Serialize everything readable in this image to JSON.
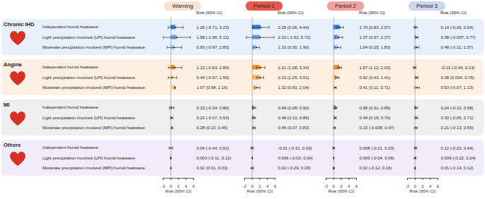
{
  "chart_data": {
    "type": "forest",
    "x_label": "Risk (95% CI)",
    "column_label": "Risk (95% CI)",
    "xlim": [
      -2,
      6
    ],
    "xticks": [
      -2,
      0,
      2,
      4,
      6
    ],
    "data_labels": true,
    "periods": [
      {
        "name": "Warning",
        "color": "#fbe2d2"
      },
      {
        "name": "Period 1",
        "color": "#e8564c"
      },
      {
        "name": "Period 2",
        "color": "#f2a29c"
      },
      {
        "name": "Period 3",
        "color": "#cdd6f0"
      }
    ],
    "row_labels": [
      "Independent humid heatwave",
      "Light precipitation involved (LPI) humid heatwave",
      "Moderate precipitation involved (MPI) humid heatwave"
    ],
    "groups": [
      {
        "name": "Chronic IHD",
        "colors": [
          "#2f80ed",
          "#6fa8f0",
          "#9cc3f4"
        ],
        "panels": [
          {
            "values": [
              1.26,
              1.58,
              0.93
            ],
            "lower": [
              -0.71,
              -1.96,
              -0.97
            ],
            "upper": [
              3.23,
              5.12,
              2.83
            ],
            "value_labels": [
              "1.26 (-0.71, 3.23)",
              "1.58 (-1.96, 5.12)",
              "0.93 (-0.97, 2.83)"
            ]
          },
          {
            "values": [
              2.25,
              2.1,
              1.1
            ],
            "lower": [
              0.06,
              -1.52,
              0.3
            ],
            "upper": [
              4.44,
              5.72,
              1.9
            ],
            "value_labels": [
              "2.25 (0.06, 4.44)",
              "2.10 (-1.52, 5.72)",
              "1.10 (0.30, 1.90)"
            ]
          },
          {
            "values": [
              1.7,
              1.37,
              1.04
            ],
            "lower": [
              0.83,
              0.37,
              0.25
            ],
            "upper": [
              2.57,
              2.37,
              1.83
            ],
            "value_labels": [
              "1.70 (0.83, 2.57)",
              "1.37 (0.37, 2.37)",
              "1.04 (0.25, 1.83)"
            ]
          },
          {
            "values": [
              0.14,
              0.38,
              0.48
            ],
            "lower": [
              -0.26,
              -0.007,
              -0.11
            ],
            "upper": [
              0.54,
              0.77,
              1.07
            ],
            "value_labels": [
              "0.14 (-0.26, 0.54)",
              "0.38 (-0.007, 0.77)",
              "0.48 (-0.11, 1.07)"
            ]
          }
        ]
      },
      {
        "name": "Angina",
        "colors": [
          "#f08c2a",
          "#f4ae66",
          "#f7c893"
        ],
        "panels": [
          {
            "values": [
              1.13,
              0.44,
              1.07
            ],
            "lower": [
              -0.63,
              -0.67,
              0.98
            ],
            "upper": [
              2.89,
              1.55,
              1.16
            ],
            "value_labels": [
              "1.13 (-0.63, 2.89)",
              "0.44 (-0.67, 1.55)",
              "1.07 (0.98, 1.16)"
            ]
          },
          {
            "values": [
              2.21,
              2.13,
              1.32
            ],
            "lower": [
              1.08,
              1.25,
              0.6
            ],
            "upper": [
              3.34,
              3.01,
              2.04
            ],
            "value_labels": [
              "2.21 (1.08, 3.34)",
              "2.13 (1.25, 3.01)",
              "1.32 (0.60, 2.04)"
            ]
          },
          {
            "values": [
              1.57,
              0.92,
              0.41
            ],
            "lower": [
              1.12,
              0.43,
              0.11
            ],
            "upper": [
              2.03,
              1.41,
              0.71
            ],
            "value_labels": [
              "1.57 (1.12, 2.03)",
              "0.92 (0.43, 1.41)",
              "0.41 (0.11, 0.71)"
            ]
          },
          {
            "values": [
              -0.13,
              0.38,
              0.53
            ],
            "lower": [
              -0.49,
              0.004,
              -0.07
            ],
            "upper": [
              0.23,
              0.76,
              1.13
            ],
            "value_labels": [
              "-0.13 (-0.49, 0.23)",
              "0.38 (0.004, 0.76)",
              "0.53 (-0.07, 1.13)"
            ]
          }
        ]
      },
      {
        "name": "MI",
        "colors": [
          "#7f7f7f",
          "#a6a6a6",
          "#c4c4c4"
        ],
        "panels": [
          {
            "values": [
              0.23,
              0.23,
              0.28
            ],
            "lower": [
              -0.34,
              -0.07,
              0.1
            ],
            "upper": [
              0.8,
              0.53,
              0.46
            ],
            "value_labels": [
              "0.23 (-0.34, 0.80)",
              "0.23 (-0.07, 0.53)",
              "0.28 (0.10, 0.46)"
            ]
          },
          {
            "values": [
              0.49,
              0.48,
              0.45
            ],
            "lower": [
              0.08,
              0.1,
              0.07
            ],
            "upper": [
              0.9,
              0.86,
              0.83
            ],
            "value_labels": [
              "0.49 (0.08, 0.90)",
              "0.48 (0.10, 0.86)",
              "0.45 (0.07, 0.83)"
            ]
          },
          {
            "values": [
              0.58,
              0.44,
              0.23
            ],
            "lower": [
              0.31,
              0.18,
              -0.008
            ],
            "upper": [
              0.85,
              0.7,
              0.47
            ],
            "value_labels": [
              "0.58 (0.31, 0.85)",
              "0.44 (0.18, 0.70)",
              "0.23 (-0.008, 0.47)"
            ]
          },
          {
            "values": [
              0.24,
              0.33,
              0.21
            ],
            "lower": [
              -0.1,
              -0.05,
              -0.13
            ],
            "upper": [
              0.58,
              0.71,
              0.55
            ],
            "value_labels": [
              "0.24 (-0.10, 0.58)",
              "0.33 (-0.05, 0.71)",
              "0.21 (-0.13, 0.55)"
            ]
          }
        ]
      },
      {
        "name": "Others",
        "colors": [
          "#9b6fd6",
          "#b897e3",
          "#cdb6ec"
        ],
        "panels": [
          {
            "values": [
              0.04,
              0.003,
              0.02
            ],
            "lower": [
              -0.44,
              -0.11,
              0.01
            ],
            "upper": [
              0.52,
              0.12,
              0.03
            ],
            "value_labels": [
              "0.04 (-0.44, 0.52)",
              "0.003 (-0.11, 0.12)",
              "0.02 (0.01, 0.03)"
            ]
          },
          {
            "values": [
              -0.01,
              0.006,
              0.02
            ],
            "lower": [
              -0.31,
              -0.03,
              -0.29
            ],
            "upper": [
              0.29,
              0.04,
              0.33
            ],
            "value_labels": [
              "-0.01 (-0.31, 0.29)",
              "0.006 (-0.03, 0.04)",
              "0.02 (-0.29, 0.33)"
            ]
          },
          {
            "values": [
              0.008,
              0.005,
              0.02
            ],
            "lower": [
              -0.21,
              -0.04,
              -0.12
            ],
            "upper": [
              0.23,
              0.05,
              0.16
            ],
            "value_labels": [
              "0.008 (-0.21, 0.23)",
              "0.005 (-0.04, 0.05)",
              "0.02 (-0.12, 0.16)"
            ]
          },
          {
            "values": [
              0.12,
              0.009,
              0.01
            ],
            "lower": [
              -0.2,
              -0.22,
              -0.14
            ],
            "upper": [
              0.44,
              0.24,
              0.12
            ],
            "value_labels": [
              "0.12 (-0.20, 0.44)",
              "0.009 (-0.22, 0.24)",
              "0.01 (-0.14, 0.12)"
            ]
          }
        ]
      }
    ]
  }
}
